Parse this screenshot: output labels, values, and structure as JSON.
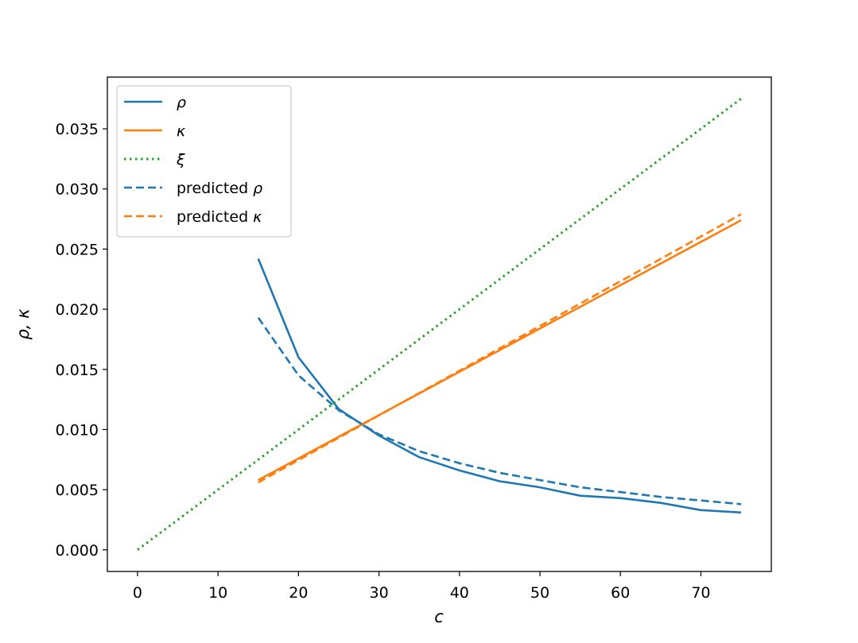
{
  "chart_data": {
    "type": "line",
    "xlabel": "c",
    "ylabel": "ρ, κ",
    "xlim": [
      -3.75,
      78.75
    ],
    "ylim": [
      -0.0018,
      0.0393
    ],
    "xticks": [
      0,
      10,
      20,
      30,
      40,
      50,
      60,
      70
    ],
    "xtick_labels": [
      "0",
      "10",
      "20",
      "30",
      "40",
      "50",
      "60",
      "70"
    ],
    "yticks": [
      0.0,
      0.005,
      0.01,
      0.015,
      0.02,
      0.025,
      0.03,
      0.035
    ],
    "ytick_labels": [
      "0.000",
      "0.005",
      "0.010",
      "0.015",
      "0.020",
      "0.025",
      "0.030",
      "0.035"
    ],
    "grid": false,
    "legend_position": "upper-left",
    "series": [
      {
        "name": "ρ",
        "label_prefix": "",
        "label_math": "ρ",
        "color": "#1f77b4",
        "style": "solid",
        "x": [
          15,
          20,
          25,
          30,
          35,
          40,
          45,
          50,
          55,
          60,
          65,
          70,
          75
        ],
        "y": [
          0.0242,
          0.016,
          0.0117,
          0.0095,
          0.0077,
          0.0066,
          0.0057,
          0.0052,
          0.0045,
          0.0043,
          0.0039,
          0.0033,
          0.0031
        ]
      },
      {
        "name": "κ",
        "label_prefix": "",
        "label_math": "κ",
        "color": "#ff7f0e",
        "style": "solid",
        "x": [
          15,
          75
        ],
        "y": [
          0.0058,
          0.0274
        ]
      },
      {
        "name": "ξ",
        "label_prefix": "",
        "label_math": "ξ",
        "color": "#2ca02c",
        "style": "dotted",
        "x": [
          0,
          75
        ],
        "y": [
          0.0,
          0.0375
        ]
      },
      {
        "name": "predicted ρ",
        "label_prefix": "predicted ",
        "label_math": "ρ",
        "color": "#1f77b4",
        "style": "dashed",
        "x": [
          15,
          20,
          25,
          30,
          35,
          40,
          45,
          50,
          55,
          60,
          65,
          70,
          75
        ],
        "y": [
          0.0193,
          0.0145,
          0.0116,
          0.0096,
          0.0082,
          0.0072,
          0.0064,
          0.0058,
          0.0052,
          0.0048,
          0.0044,
          0.0041,
          0.0038
        ]
      },
      {
        "name": "predicted κ",
        "label_prefix": "predicted ",
        "label_math": "κ",
        "color": "#ff7f0e",
        "style": "dashed",
        "x": [
          15,
          75
        ],
        "y": [
          0.0056,
          0.0279
        ]
      }
    ]
  }
}
